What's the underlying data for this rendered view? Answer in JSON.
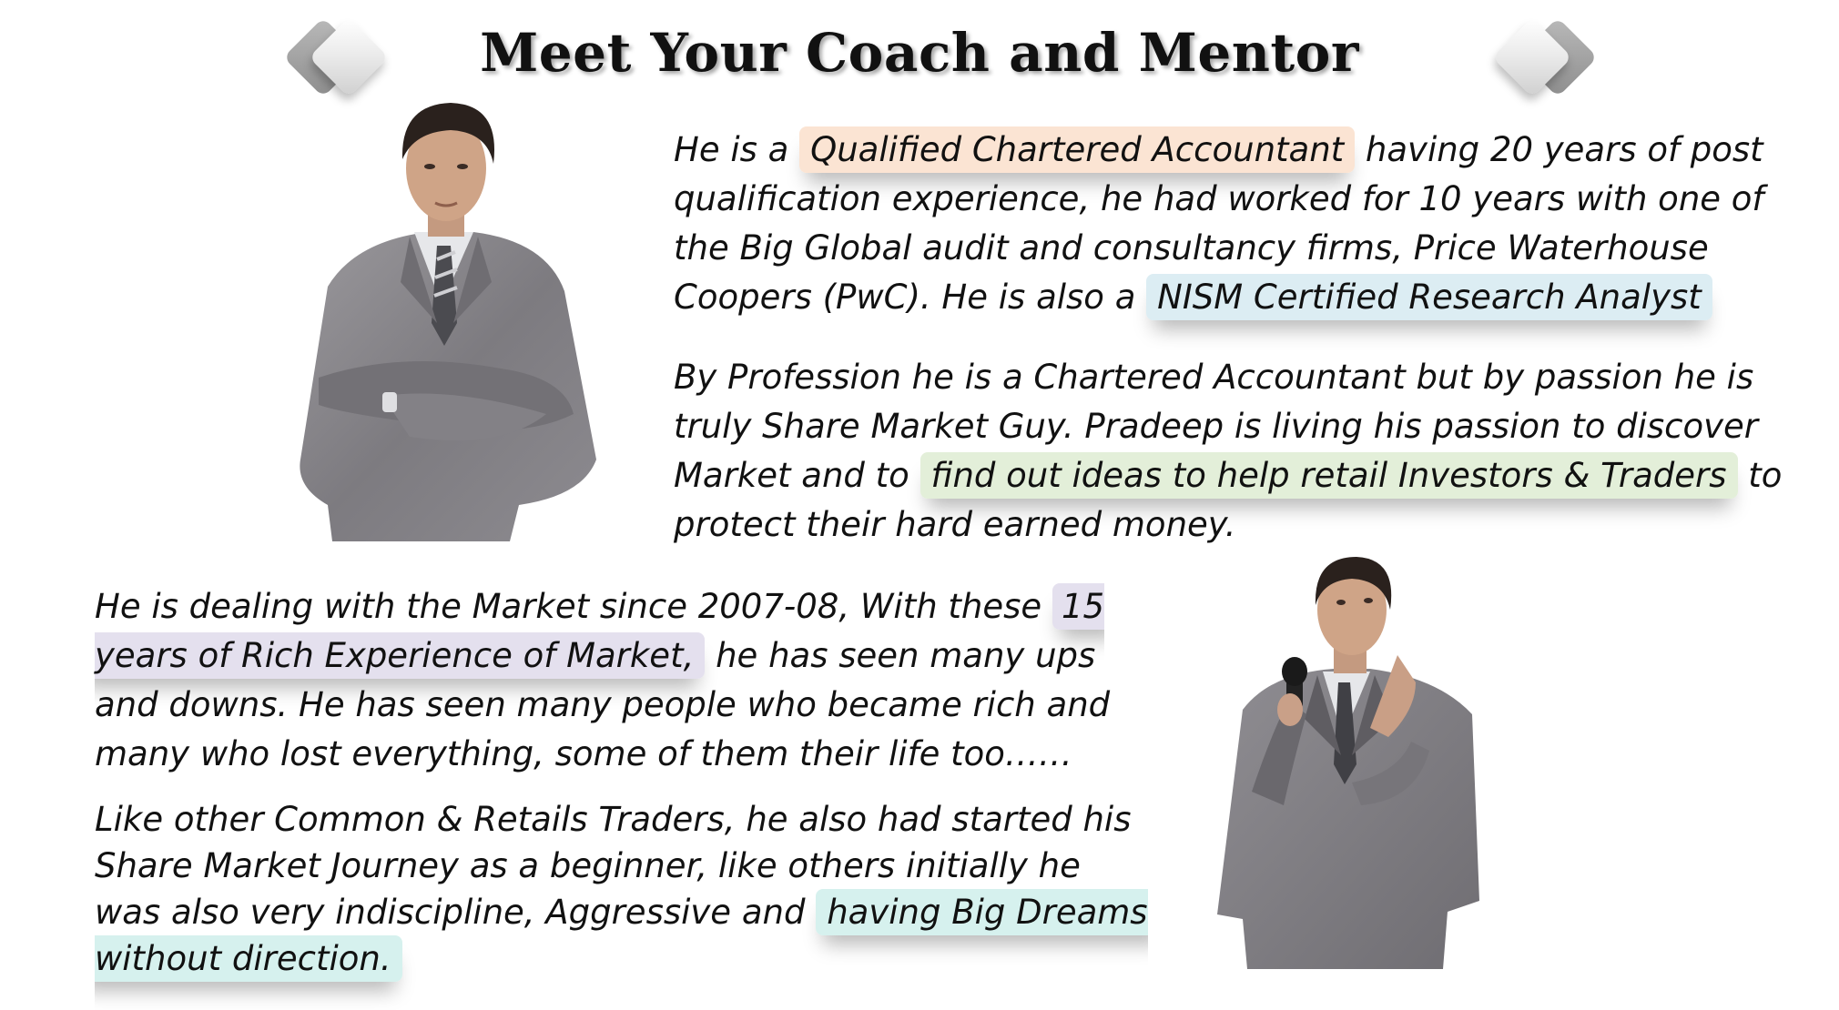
{
  "title": "Meet Your Coach and Mentor",
  "icons": {
    "left": "diamond-icon",
    "right": "diamond-icon"
  },
  "p1": {
    "t1": "He is a ",
    "h1": "Qualified Chartered Accountant",
    "t2": " having 20 years of post qualification experience, he had worked for 10 years with one of the Big Global audit and consultancy firms, Price Waterhouse Coopers (PwC). He is also a ",
    "h2": "NISM Certified Research Analyst"
  },
  "p2": {
    "t1": "By Profession he is a Chartered Accountant but by passion he is truly Share Market Guy. Pradeep is living his passion to discover Market and to ",
    "h1": "find out ideas to help retail Investors & Traders",
    "t2": " to protect their hard earned money."
  },
  "p3": {
    "t1": "He is dealing with the Market since 2007-08, With these ",
    "h1": "15 years of Rich Experience of Market,",
    "t2": " he has seen many ups and downs. He has seen many people who became rich and many who lost everything, some of them their life too……"
  },
  "p4": {
    "t1": "Like other Common & Retails Traders, he also had started his Share Market Journey as a beginner, like others initially he was also very indiscipline, Aggressive and ",
    "h1": "having Big Dreams without direction."
  },
  "highlight_colors": {
    "peach": "#fbe4d3",
    "blue": "#dcedf3",
    "green": "#e3efd9",
    "lavender": "#e4e0ee",
    "teal": "#d6f1ee"
  }
}
